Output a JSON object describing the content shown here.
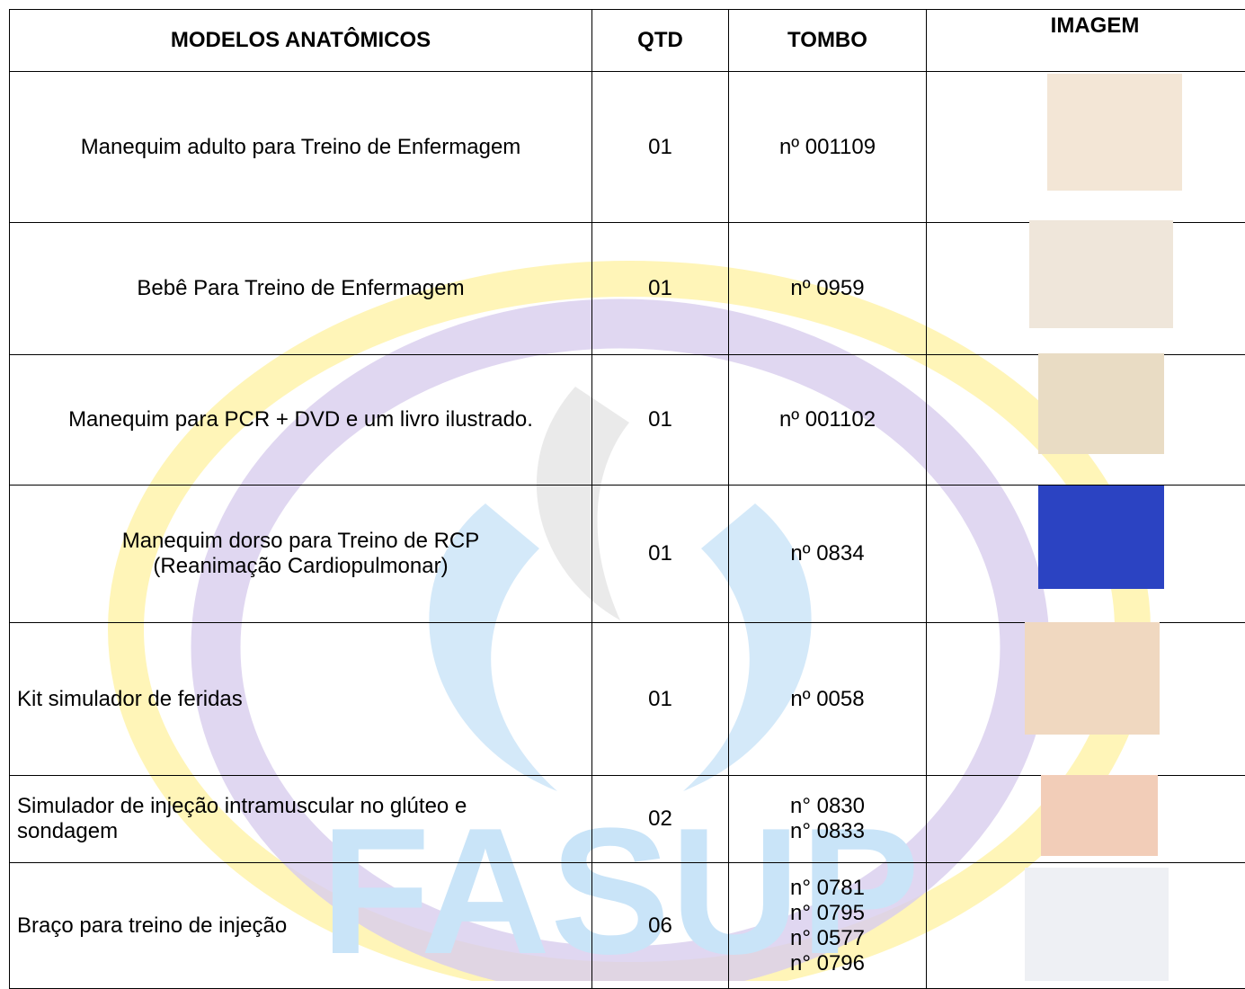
{
  "watermark": "FASUP",
  "table": {
    "header": [
      "MODELOS ANATÔMICOS",
      "QTD",
      "TOMBO",
      "IMAGEM"
    ],
    "rows": [
      {
        "item": [
          "Manequim adulto para Treino de Enfermagem"
        ],
        "qtd": "01",
        "tombo": [
          "nº 001109"
        ]
      },
      {
        "item": [
          "Bebê Para Treino de Enfermagem"
        ],
        "qtd": "01",
        "tombo": [
          "nº 0959"
        ]
      },
      {
        "item": [
          "Manequim para PCR + DVD e um livro ilustrado."
        ],
        "qtd": "01",
        "tombo": [
          "nº 001102"
        ]
      },
      {
        "item": [
          "Manequim dorso para Treino de RCP",
          "(Reanimação Cardiopulmonar)"
        ],
        "qtd": "01",
        "tombo": [
          "nº 0834"
        ]
      },
      {
        "item": [
          "Kit simulador de feridas"
        ],
        "qtd": "01",
        "tombo": [
          "nº 0058"
        ]
      },
      {
        "item": [
          "Simulador de injeção intramuscular no glúteo e",
          "sondagem"
        ],
        "qtd": "02",
        "tombo": [
          "n° 0830",
          "n° 0833"
        ]
      },
      {
        "item": [
          "Braço para treino de injeção"
        ],
        "qtd": "06",
        "tombo": [
          "n° 0781",
          "n° 0795",
          "n° 0577",
          "n° 0796"
        ]
      }
    ]
  }
}
